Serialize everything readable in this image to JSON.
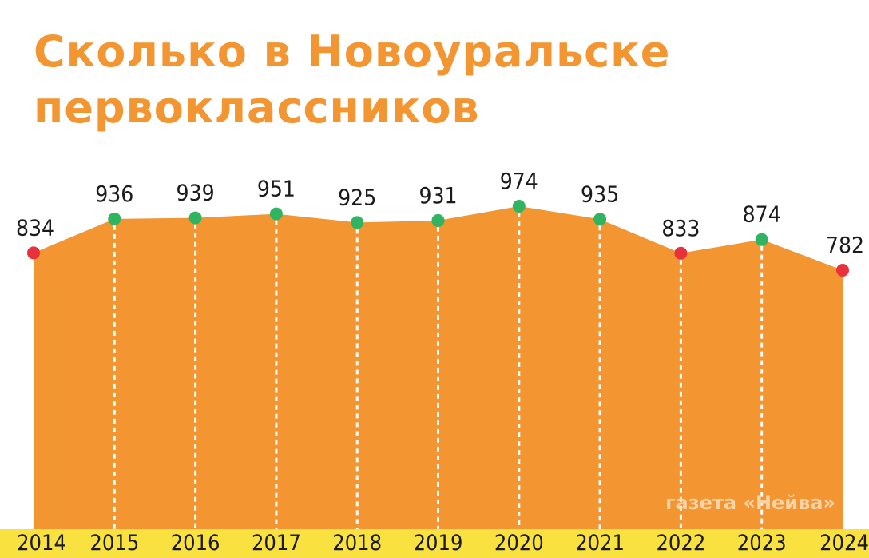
{
  "chart_data": {
    "type": "area",
    "title": "Сколько в Новоуральске первоклассников",
    "categories": [
      "2014",
      "2015",
      "2016",
      "2017",
      "2018",
      "2019",
      "2020",
      "2021",
      "2022",
      "2023",
      "2024"
    ],
    "values": [
      834,
      936,
      939,
      951,
      925,
      931,
      974,
      935,
      833,
      874,
      782
    ],
    "marker_colors": [
      "#e8313a",
      "#2fb561",
      "#2fb561",
      "#2fb561",
      "#2fb561",
      "#2fb561",
      "#2fb561",
      "#2fb561",
      "#e8313a",
      "#2fb561",
      "#e8313a"
    ],
    "area_color": "#f39530",
    "axis_band_color": "#f9e140",
    "xlabel": "",
    "ylabel": "",
    "grid": false,
    "credit": "газета «Нейва»"
  }
}
